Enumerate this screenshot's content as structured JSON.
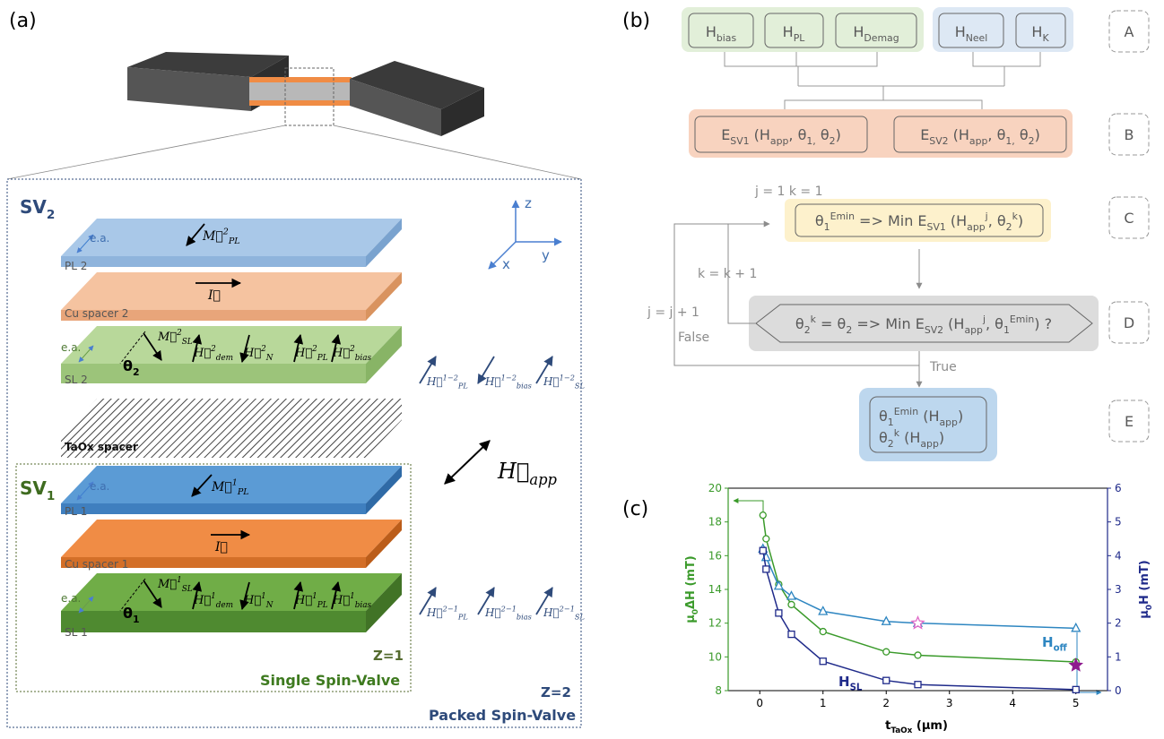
{
  "panel_a": {
    "label": "(a)",
    "sv2": [
      {
        "text": "SV"
      },
      {
        "sub": "2"
      }
    ],
    "sv1": [
      {
        "text": "SV"
      },
      {
        "sub": "1"
      }
    ],
    "layers": [
      "PL 2",
      "Cu spacer 2",
      "SL 2",
      "TaOx spacer",
      "PL 1",
      "Cu spacer 1",
      "SL 1"
    ],
    "easy_axis": [
      "e.a.",
      "e.a.",
      "e.a.",
      "e.a."
    ],
    "axes": [
      "z",
      "y",
      "x"
    ],
    "h_app": [
      {
        "text": "H⃗"
      },
      {
        "sub": "app"
      }
    ],
    "pl2_moment": [
      {
        "text": "M⃗"
      },
      {
        "sup": "2"
      },
      {
        "sub": "PL"
      }
    ],
    "pl1_moment": [
      {
        "text": "M⃗"
      },
      {
        "sup": "1"
      },
      {
        "sub": "PL"
      }
    ],
    "current": [
      "I⃗",
      "I⃗"
    ],
    "sl2_fields": [
      [
        {
          "text": "M⃗"
        },
        {
          "sup": "2"
        },
        {
          "sub": "SL"
        }
      ],
      [
        {
          "text": "H⃗"
        },
        {
          "sup": "2"
        },
        {
          "sub": "dem"
        }
      ],
      [
        {
          "text": "H⃗"
        },
        {
          "sup": "2"
        },
        {
          "sub": "N"
        }
      ],
      [
        {
          "text": "H⃗"
        },
        {
          "sup": "2"
        },
        {
          "sub": "PL"
        }
      ],
      [
        {
          "text": "H⃗"
        },
        {
          "sup": "2"
        },
        {
          "sub": "bias"
        }
      ]
    ],
    "sl1_fields": [
      [
        {
          "text": "M⃗"
        },
        {
          "sup": "1"
        },
        {
          "sub": "SL"
        }
      ],
      [
        {
          "text": "H⃗"
        },
        {
          "sup": "1"
        },
        {
          "sub": "dem"
        }
      ],
      [
        {
          "text": "H⃗"
        },
        {
          "sup": "1"
        },
        {
          "sub": "N"
        }
      ],
      [
        {
          "text": "H⃗"
        },
        {
          "sup": "1"
        },
        {
          "sub": "PL"
        }
      ],
      [
        {
          "text": "H⃗"
        },
        {
          "sup": "1"
        },
        {
          "sub": "bias"
        }
      ]
    ],
    "theta2": [
      {
        "text": "θ"
      },
      {
        "sub": "2"
      }
    ],
    "theta1": [
      {
        "text": "θ"
      },
      {
        "sub": "1"
      }
    ],
    "couplings_12": [
      [
        {
          "text": "H⃗"
        },
        {
          "sup": "1−2"
        },
        {
          "sub": "PL"
        }
      ],
      [
        {
          "text": "H⃗"
        },
        {
          "sup": "1−2"
        },
        {
          "sub": "bias"
        }
      ],
      [
        {
          "text": "H⃗"
        },
        {
          "sup": "1−2"
        },
        {
          "sub": "SL"
        }
      ]
    ],
    "couplings_21": [
      [
        {
          "text": "H⃗"
        },
        {
          "sup": "2−1"
        },
        {
          "sub": "PL"
        }
      ],
      [
        {
          "text": "H⃗"
        },
        {
          "sup": "2−1"
        },
        {
          "sub": "bias"
        }
      ],
      [
        {
          "text": "H⃗"
        },
        {
          "sup": "2−1"
        },
        {
          "sub": "SL"
        }
      ]
    ],
    "z1": "Z=1",
    "single": "Single Spin-Valve",
    "z2": "Z=2",
    "packed": "Packed Spin-Valve"
  },
  "panel_b": {
    "label": "(b)",
    "row_labels": [
      "A",
      "B",
      "C",
      "D",
      "E"
    ],
    "fields": [
      [
        {
          "text": "H"
        },
        {
          "sub": "bias"
        }
      ],
      [
        {
          "text": "H"
        },
        {
          "sub": "PL"
        }
      ],
      [
        {
          "text": "H"
        },
        {
          "sub": "Demag"
        }
      ],
      [
        {
          "text": "H"
        },
        {
          "sub": "Neel"
        }
      ],
      [
        {
          "text": "H"
        },
        {
          "sub": "K"
        }
      ]
    ],
    "energies": [
      [
        {
          "text": "E"
        },
        {
          "sub": "SV1"
        },
        {
          "text": " (H"
        },
        {
          "sub": "app"
        },
        {
          "text": ", θ"
        },
        {
          "sub": "1,"
        },
        {
          "text": " θ"
        },
        {
          "sub": "2"
        },
        {
          "text": ")"
        }
      ],
      [
        {
          "text": "E"
        },
        {
          "sub": "SV2"
        },
        {
          "text": " (H"
        },
        {
          "sub": "app"
        },
        {
          "text": ", θ"
        },
        {
          "sub": "1,"
        },
        {
          "text": " θ"
        },
        {
          "sub": "2"
        },
        {
          "text": ")"
        }
      ]
    ],
    "init": "j = 1  k = 1",
    "step_c": [
      {
        "text": "θ"
      },
      {
        "sub": "1"
      },
      {
        "sup": "Emin"
      },
      {
        "text": " => Min E"
      },
      {
        "sub": "SV1"
      },
      {
        "text": " (H"
      },
      {
        "sub": "app"
      },
      {
        "sup": "j"
      },
      {
        "text": ", θ"
      },
      {
        "sub": "2"
      },
      {
        "sup": "k"
      },
      {
        "text": ")"
      }
    ],
    "k_inc": "k = k + 1",
    "j_inc": "j = j + 1",
    "false": "False",
    "step_d": [
      {
        "text": "θ"
      },
      {
        "sub": "2"
      },
      {
        "sup": "k"
      },
      {
        "text": " = θ"
      },
      {
        "sub": "2"
      },
      {
        "text": "  => Min E"
      },
      {
        "sub": "SV2"
      },
      {
        "text": " (H"
      },
      {
        "sub": "app"
      },
      {
        "sup": "j"
      },
      {
        "text": ", θ"
      },
      {
        "sub": "1"
      },
      {
        "sup": "Emin"
      },
      {
        "text": ") ?"
      }
    ],
    "true": "True",
    "result": [
      [
        {
          "text": "θ"
        },
        {
          "sub": "1"
        },
        {
          "sup": "Emin"
        },
        {
          "text": "  (H"
        },
        {
          "sub": "app"
        },
        {
          "text": ")"
        }
      ],
      [
        {
          "text": "θ"
        },
        {
          "sub": "2"
        },
        {
          "sup": "k"
        },
        {
          "text": "  (H"
        },
        {
          "sub": "app"
        },
        {
          "text": ")"
        }
      ]
    ]
  },
  "panel_c": {
    "label": "(c)"
  },
  "chart_data": {
    "type": "line",
    "x": [
      0.05,
      0.1,
      0.3,
      0.5,
      1,
      2,
      2.5,
      5
    ],
    "xlabel": [
      {
        "text": "t"
      },
      {
        "sub": "TaOx"
      },
      {
        "text": " (μm)"
      }
    ],
    "ylabel": [
      {
        "text": "μ"
      },
      {
        "sub": "0"
      },
      {
        "text": "ΔH (mT)"
      }
    ],
    "y2label": [
      {
        "text": "μ"
      },
      {
        "sub": "0"
      },
      {
        "text": "H (mT)"
      }
    ],
    "xlim": [
      -0.5,
      5.5
    ],
    "xticks": [
      0,
      1,
      2,
      3,
      4,
      5
    ],
    "ylim": [
      8,
      20
    ],
    "yticks": [
      8,
      10,
      12,
      14,
      16,
      18,
      20
    ],
    "y2lim": [
      0,
      6
    ],
    "y2ticks": [
      0,
      1,
      2,
      3,
      4,
      5,
      6
    ],
    "series": [
      {
        "color": "#3a9a2a",
        "marker": "circle",
        "line": true,
        "values": [
          18.4,
          17.0,
          14.3,
          13.1,
          11.5,
          10.3,
          10.1,
          9.7
        ]
      },
      {
        "name": [
          {
            "text": "H"
          },
          {
            "sub": "off"
          }
        ],
        "color": "#2e86c1",
        "marker": "triangle",
        "line": true,
        "axis": "y2",
        "values": [
          4.2,
          3.95,
          3.1,
          2.8,
          2.35,
          2.05,
          2.0,
          1.85
        ]
      },
      {
        "name": [
          {
            "text": "H"
          },
          {
            "sub": "SL"
          }
        ],
        "color": "#1f2a8a",
        "marker": "square",
        "line": true,
        "axis": "y2",
        "values": [
          4.15,
          3.6,
          2.3,
          1.67,
          0.87,
          0.3,
          0.18,
          0.03
        ]
      },
      {
        "color": "#e06bc8",
        "marker": "star-open",
        "x": [
          2.5
        ],
        "values": [
          12.0
        ]
      },
      {
        "color": "#8e1a8e",
        "marker": "star",
        "x": [
          5
        ],
        "values": [
          9.5
        ]
      }
    ]
  }
}
